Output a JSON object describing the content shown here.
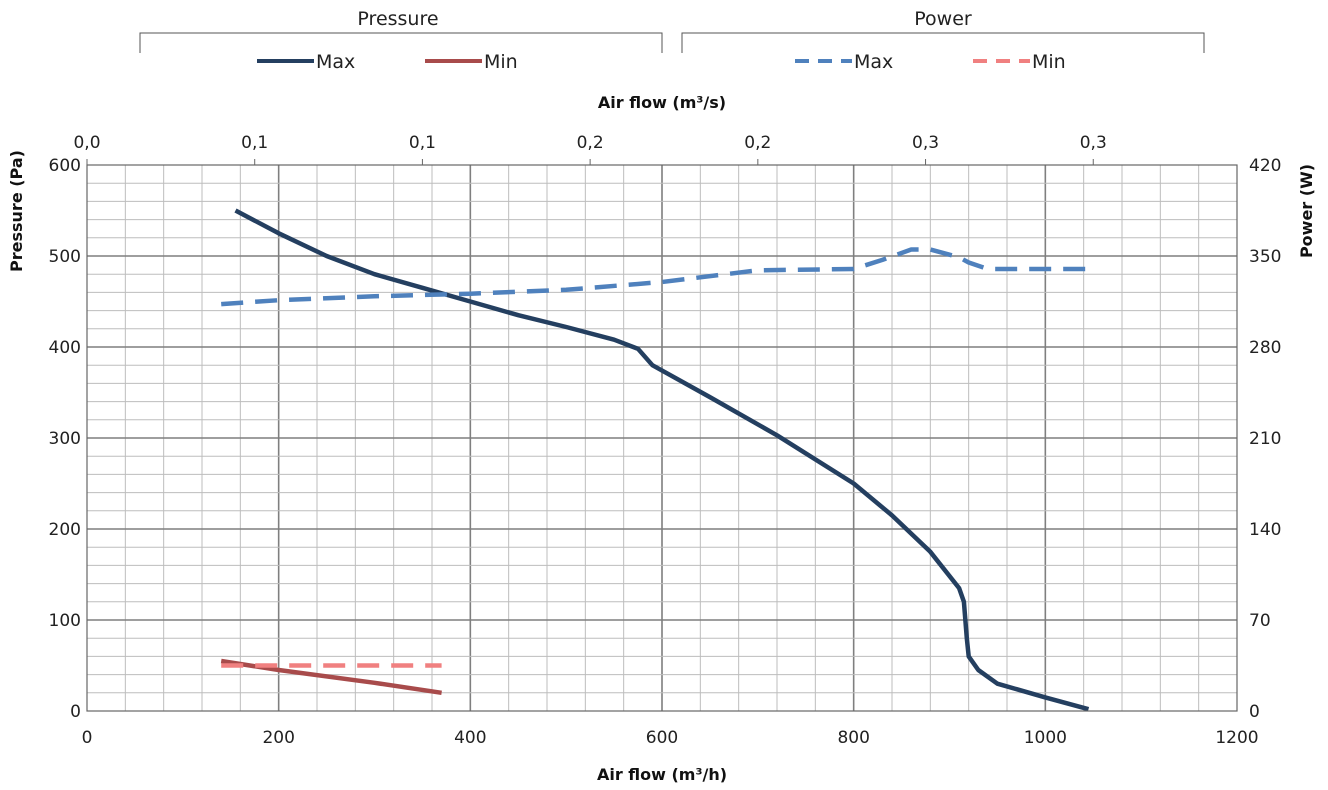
{
  "legend": {
    "groups": [
      {
        "title": "Pressure",
        "entries": [
          {
            "label": "Max",
            "color": "#243f60",
            "dash": "solid"
          },
          {
            "label": "Min",
            "color": "#a84b4b",
            "dash": "solid"
          }
        ]
      },
      {
        "title": "Power",
        "entries": [
          {
            "label": "Max",
            "color": "#4f81bd",
            "dash": "dashed"
          },
          {
            "label": "Min",
            "color": "#f08080",
            "dash": "dashed"
          }
        ]
      }
    ]
  },
  "chart_data": {
    "type": "line",
    "xlabel": "Air flow (m³/h)",
    "x2label": "Air flow (m³/s)",
    "ylabel": "Pressure (Pa)",
    "y2label": "Power (W)",
    "xlim": [
      0,
      1200
    ],
    "ylim": [
      0,
      600
    ],
    "y2lim": [
      0,
      420
    ],
    "x_ticks": [
      "0",
      "200",
      "400",
      "600",
      "800",
      "1000",
      "1200"
    ],
    "x2_ticks": [
      "0,0",
      "0,1",
      "0,1",
      "0,2",
      "0,2",
      "0,3",
      "0,3"
    ],
    "y_ticks": [
      "0",
      "100",
      "200",
      "300",
      "400",
      "500",
      "600"
    ],
    "y2_ticks": [
      "0",
      "70",
      "140",
      "210",
      "280",
      "350",
      "420"
    ],
    "grid": true,
    "legend_position": "top",
    "series": [
      {
        "name": "Max",
        "group": "Pressure",
        "axis": "left",
        "color": "#243f60",
        "dash": "solid",
        "x": [
          155,
          200,
          250,
          300,
          350,
          400,
          450,
          500,
          550,
          575,
          590,
          650,
          720,
          800,
          840,
          880,
          910,
          915,
          918,
          920,
          930,
          950,
          1000,
          1045
        ],
        "y": [
          550,
          525,
          500,
          480,
          465,
          450,
          435,
          422,
          408,
          398,
          380,
          345,
          303,
          250,
          215,
          175,
          135,
          120,
          80,
          60,
          45,
          30,
          15,
          2
        ]
      },
      {
        "name": "Min",
        "group": "Pressure",
        "axis": "left",
        "color": "#a84b4b",
        "dash": "solid",
        "x": [
          140,
          200,
          300,
          370
        ],
        "y": [
          55,
          45,
          31,
          20
        ]
      },
      {
        "name": "Max",
        "group": "Power",
        "axis": "right",
        "color": "#4f81bd",
        "dash": "dashed",
        "x": [
          140,
          200,
          300,
          400,
          500,
          600,
          700,
          800,
          830,
          860,
          880,
          910,
          920,
          940,
          1045
        ],
        "y": [
          313,
          316,
          319,
          321,
          324,
          330,
          339,
          340,
          347,
          355,
          355,
          349,
          345,
          340,
          340
        ]
      },
      {
        "name": "Min",
        "group": "Power",
        "axis": "right",
        "color": "#f08080",
        "dash": "dashed",
        "x": [
          140,
          370
        ],
        "y": [
          35,
          35
        ]
      }
    ]
  }
}
